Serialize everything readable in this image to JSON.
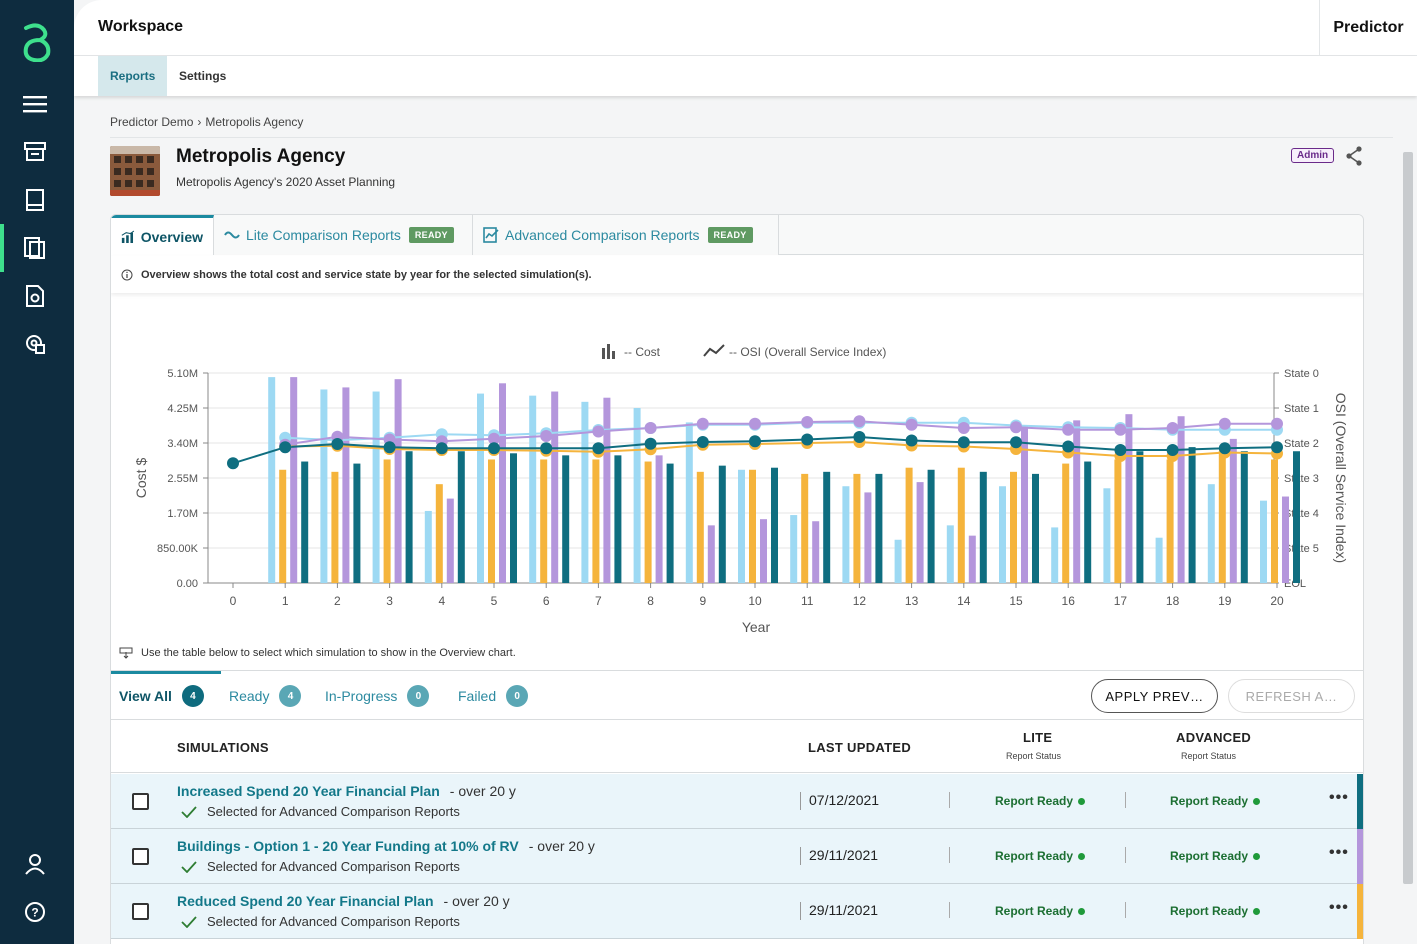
{
  "nav": {
    "items": [
      {
        "icon": "menu-icon"
      },
      {
        "icon": "inventory-icon"
      },
      {
        "icon": "book-icon"
      },
      {
        "icon": "reports-icon"
      },
      {
        "icon": "document-search-icon"
      },
      {
        "icon": "settings-gear-icon"
      },
      {
        "icon": "user-icon"
      },
      {
        "icon": "help-icon"
      }
    ],
    "active_item": "reports-icon"
  },
  "topbar": {
    "workspace": "Workspace",
    "product": "Predictor"
  },
  "subnav": {
    "reports": "Reports",
    "settings": "Settings"
  },
  "breadcrumb": {
    "root": "Predictor Demo",
    "separator": "›",
    "current": "Metropolis Agency"
  },
  "header": {
    "title": "Metropolis Agency",
    "subtitle": "Metropolis Agency's 2020 Asset Planning",
    "badge": "Admin"
  },
  "tabs": {
    "overview": "Overview",
    "lite": "Lite Comparison Reports",
    "lite_badge": "READY",
    "advanced": "Advanced Comparison Reports",
    "advanced_badge": "READY"
  },
  "info": "Overview shows the total cost and service state by year for the selected simulation(s).",
  "hint": "Use the table below to select which simulation to show in the Overview chart.",
  "chart_data": {
    "type": "bar",
    "legend": [
      "-- Cost",
      "-- OSI (Overall Service Index)"
    ],
    "xlabel": "Year",
    "ylabel": "Cost $",
    "y2label": "OSI (Overall Service Index)",
    "x": [
      0,
      1,
      2,
      3,
      4,
      5,
      6,
      7,
      8,
      9,
      10,
      11,
      12,
      13,
      14,
      15,
      16,
      17,
      18,
      19,
      20
    ],
    "y_ticks": [
      "0.00",
      "850.00K",
      "1.70M",
      "2.55M",
      "3.40M",
      "4.25M",
      "5.10M"
    ],
    "y_max": 5100000,
    "y2_ticks": [
      "State 0",
      "State 1",
      "State 2",
      "State 3",
      "State 4",
      "State 5",
      "EOL"
    ],
    "y2_range": [
      0,
      6
    ],
    "series": [
      {
        "color": "#9dd9f3",
        "cost": [
          0,
          5000000,
          4700000,
          4650000,
          1750000,
          4600000,
          4550000,
          4400000,
          4250000,
          3900000,
          2750000,
          1650000,
          2350000,
          1050000,
          1400000,
          2350000,
          1350000,
          2300000,
          1100000,
          2400000,
          2000000
        ],
        "osi": [
          null,
          1.85,
          1.92,
          1.85,
          1.75,
          1.78,
          1.72,
          1.63,
          1.57,
          1.48,
          1.48,
          1.42,
          1.42,
          1.42,
          1.42,
          1.5,
          1.55,
          1.57,
          1.62,
          1.62,
          1.62
        ]
      },
      {
        "color": "#f5b43c",
        "cost": [
          0,
          2750000,
          2700000,
          3000000,
          2400000,
          3000000,
          3000000,
          3000000,
          2950000,
          2700000,
          2750000,
          2650000,
          2650000,
          2800000,
          2800000,
          2700000,
          2900000,
          3000000,
          3000000,
          3200000,
          3000000
        ],
        "osi": [
          null,
          2.1,
          2.08,
          2.17,
          2.2,
          2.2,
          2.22,
          2.25,
          2.18,
          2.05,
          2.03,
          2.0,
          1.97,
          2.07,
          2.1,
          2.17,
          2.27,
          2.37,
          2.37,
          2.27,
          2.3
        ]
      },
      {
        "color": "#b496dc",
        "cost": [
          0,
          5000000,
          4750000,
          4950000,
          2050000,
          4850000,
          4650000,
          4500000,
          3100000,
          1400000,
          1550000,
          1500000,
          2200000,
          2450000,
          1150000,
          3800000,
          3950000,
          4100000,
          4050000,
          3500000,
          2100000
        ],
        "osi": [
          null,
          2.05,
          1.82,
          1.9,
          1.95,
          1.88,
          1.8,
          1.67,
          1.57,
          1.45,
          1.45,
          1.4,
          1.38,
          1.48,
          1.57,
          1.55,
          1.62,
          1.62,
          1.57,
          1.45,
          1.45
        ]
      },
      {
        "color": "#0f6e80",
        "cost": [
          0,
          2950000,
          2900000,
          3200000,
          3200000,
          3150000,
          3100000,
          3100000,
          2900000,
          2850000,
          2800000,
          2700000,
          2650000,
          2750000,
          2700000,
          2650000,
          2950000,
          3200000,
          3300000,
          3200000,
          3200000
        ],
        "osi": [
          2.58,
          2.12,
          2.03,
          2.12,
          2.15,
          2.15,
          2.15,
          2.15,
          2.02,
          1.97,
          1.95,
          1.9,
          1.83,
          1.93,
          1.98,
          1.98,
          2.1,
          2.2,
          2.2,
          2.15,
          2.12
        ]
      }
    ]
  },
  "filters": {
    "all": "View All",
    "all_count": "4",
    "ready": "Ready",
    "ready_count": "4",
    "progress": "In-Progress",
    "progress_count": "0",
    "failed": "Failed",
    "failed_count": "0",
    "apply": "APPLY PREV…",
    "refresh": "REFRESH A…"
  },
  "table": {
    "col_sim": "SIMULATIONS",
    "col_updated": "LAST UPDATED",
    "col_lite": "LITE",
    "col_lite_sub": "Report Status",
    "col_adv": "ADVANCED",
    "col_adv_sub": "Report Status",
    "rows": [
      {
        "name": "Increased Spend 20 Year Financial Plan",
        "over": "- over 20 y",
        "selected": "Selected for Advanced Comparison Reports",
        "updated": "07/12/2021",
        "lite": "Report Ready",
        "advanced": "Report Ready",
        "color": "#0f6e80"
      },
      {
        "name": "Buildings - Option 1 - 20 Year Funding at 10% of RV",
        "over": "- over 20 y",
        "selected": "Selected for Advanced Comparison Reports",
        "updated": "29/11/2021",
        "lite": "Report Ready",
        "advanced": "Report Ready",
        "color": "#b496dc"
      },
      {
        "name": "Reduced Spend 20 Year Financial Plan",
        "over": "- over 20 y",
        "selected": "Selected for Advanced Comparison Reports",
        "updated": "29/11/2021",
        "lite": "Report Ready",
        "advanced": "Report Ready",
        "color": "#f5b43c"
      }
    ]
  }
}
